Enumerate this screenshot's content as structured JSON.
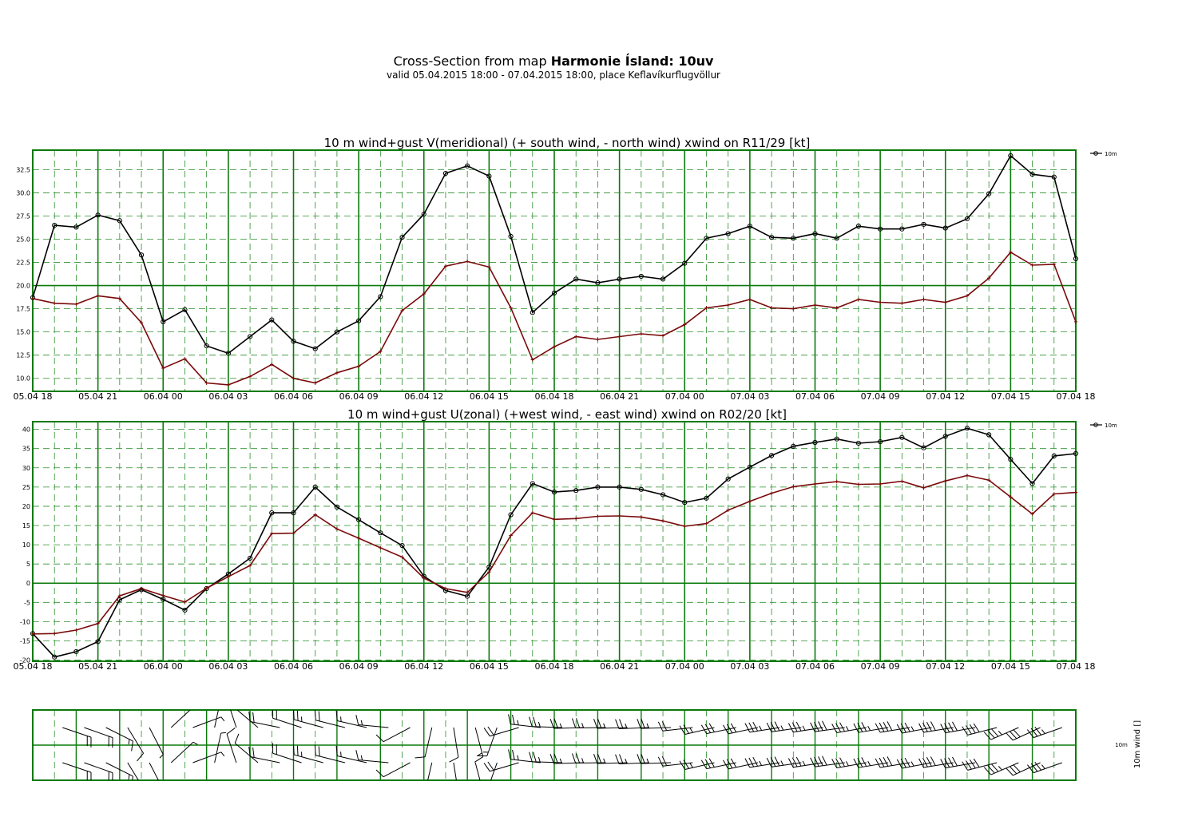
{
  "header": {
    "title_prefix": "Cross-Section from map ",
    "title_bold": "Harmonie Ísland: 10uv",
    "subtitle": "valid 05.04.2015 18:00 - 07.04.2015 18:00, place Keflavíkurflugvöllur"
  },
  "colors": {
    "frame": "#0b7a0b",
    "grid": "#2a8f2a",
    "wind_line": "#000000",
    "gust_line": "#7a0a0a"
  },
  "chart_data": [
    {
      "type": "line",
      "title": "10 m wind+gust V(meridional) (+ south wind, - north wind) xwind on R11/29 [kt]",
      "x_tick_labels": [
        "05.04 18",
        "05.04 21",
        "06.04 00",
        "06.04 03",
        "06.04 06",
        "06.04 09",
        "06.04 12",
        "06.04 15",
        "06.04 18",
        "06.04 21",
        "07.04 00",
        "07.04 03",
        "07.04 06",
        "07.04 09",
        "07.04 12",
        "07.04 15",
        "07.04 18"
      ],
      "x_hours": [
        0,
        1,
        2,
        3,
        4,
        5,
        6,
        7,
        8,
        9,
        10,
        11,
        12,
        13,
        14,
        15,
        16,
        17,
        18,
        19,
        20,
        21,
        22,
        23,
        24,
        25,
        26,
        27,
        28,
        29,
        30,
        31,
        32,
        33,
        34,
        35,
        36,
        37,
        38,
        39,
        40,
        41,
        42,
        43,
        44,
        45,
        46,
        47,
        48
      ],
      "ylim": [
        8.6,
        34.6
      ],
      "y_ticks": [
        10.0,
        12.5,
        15.0,
        17.5,
        20.0,
        22.5,
        25.0,
        27.5,
        30.0,
        32.5
      ],
      "y_tick_labels": [
        "10.0",
        "12.5",
        "15.0",
        "17.5",
        "20.0",
        "22.5",
        "25.0",
        "27.5",
        "30.0",
        "32.5"
      ],
      "zero_line": 20.0,
      "legend": "10m",
      "legend_position": "top-right",
      "series": [
        {
          "values": [
            18.7,
            26.5,
            26.3,
            27.6,
            27.0,
            23.3,
            16.1,
            17.4,
            13.5,
            12.7,
            14.5,
            16.3,
            14.0,
            13.2,
            15.0,
            16.2,
            18.8,
            25.2,
            27.7,
            32.1,
            32.9,
            31.8,
            25.3,
            17.1,
            19.2,
            20.7,
            20.3,
            20.7,
            21.0,
            20.7,
            22.4,
            25.1,
            25.6,
            26.4,
            25.2,
            25.1,
            25.6,
            25.1,
            26.4,
            26.1,
            26.1,
            26.6,
            26.2,
            27.2,
            29.9,
            34.0,
            32.0,
            31.7,
            22.9
          ]
        },
        {
          "values": [
            18.6,
            18.1,
            18.0,
            18.9,
            18.6,
            16.0,
            11.1,
            12.1,
            9.5,
            9.3,
            10.2,
            11.5,
            10.0,
            9.5,
            10.6,
            11.3,
            12.9,
            17.3,
            19.1,
            22.1,
            22.6,
            22.0,
            17.6,
            12.0,
            13.4,
            14.5,
            14.2,
            14.5,
            14.8,
            14.6,
            15.8,
            17.6,
            17.9,
            18.5,
            17.6,
            17.5,
            17.9,
            17.6,
            18.5,
            18.2,
            18.1,
            18.5,
            18.2,
            18.9,
            20.8,
            23.6,
            22.2,
            22.3,
            16.1
          ]
        }
      ]
    },
    {
      "type": "line",
      "title": "10 m wind+gust U(zonal) (+west wind, - east wind) xwind on R02/20 [kt]",
      "x_tick_labels": [
        "05.04 18",
        "05.04 21",
        "06.04 00",
        "06.04 03",
        "06.04 06",
        "06.04 09",
        "06.04 12",
        "06.04 15",
        "06.04 18",
        "06.04 21",
        "07.04 00",
        "07.04 03",
        "07.04 06",
        "07.04 09",
        "07.04 12",
        "07.04 15",
        "07.04 18"
      ],
      "ylim": [
        -20.3,
        42.0
      ],
      "y_ticks": [
        -20,
        -15,
        -10,
        -5,
        0,
        5,
        10,
        15,
        20,
        25,
        30,
        35,
        40
      ],
      "y_tick_labels": [
        "-20",
        "-15",
        "-10",
        "-5",
        "0",
        "5",
        "10",
        "15",
        "20",
        "25",
        "30",
        "35",
        "40"
      ],
      "zero_line": 0,
      "legend": "10m",
      "legend_position": "top-right",
      "series": [
        {
          "values": [
            -13.1,
            -19.2,
            -17.8,
            -15.2,
            -4.3,
            -1.7,
            -4.2,
            -7.0,
            -1.4,
            2.4,
            6.5,
            18.3,
            18.3,
            25.0,
            19.8,
            16.5,
            13.1,
            9.8,
            1.8,
            -1.9,
            -3.4,
            4.2,
            17.8,
            25.9,
            23.7,
            24.1,
            25.0,
            25.0,
            24.4,
            23.0,
            21.0,
            22.1,
            27.1,
            30.2,
            33.2,
            35.6,
            36.6,
            37.5,
            36.4,
            36.8,
            37.9,
            35.2,
            38.2,
            40.3,
            38.6,
            32.2,
            25.9,
            33.1,
            33.7
          ]
        },
        {
          "values": [
            -13.2,
            -13.1,
            -12.2,
            -10.5,
            -3.3,
            -1.4,
            -3.2,
            -4.9,
            -1.3,
            1.7,
            4.6,
            12.9,
            13.0,
            17.8,
            14.1,
            11.7,
            9.2,
            6.8,
            1.3,
            -1.4,
            -2.4,
            2.9,
            12.4,
            18.3,
            16.6,
            16.8,
            17.4,
            17.5,
            17.2,
            16.2,
            14.8,
            15.5,
            19.0,
            21.3,
            23.4,
            25.1,
            25.8,
            26.4,
            25.7,
            25.8,
            26.5,
            24.8,
            26.6,
            28.0,
            26.8,
            22.4,
            18.0,
            23.2,
            23.6
          ]
        }
      ]
    }
  ],
  "barbs_panel": {
    "row_label": "10m",
    "axis_label": "10m wind []"
  }
}
